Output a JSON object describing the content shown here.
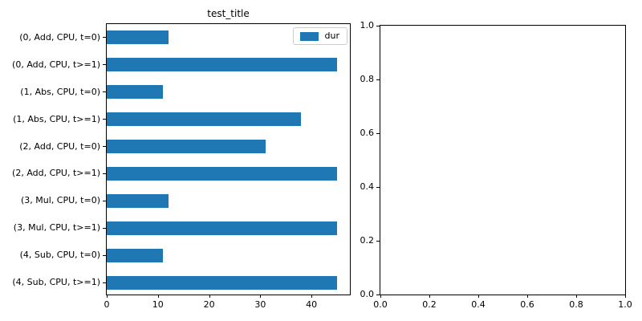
{
  "figure": {
    "background": "#ffffff"
  },
  "chart_data": [
    {
      "type": "bar",
      "orientation": "horizontal",
      "title": "test_title",
      "categories": [
        "(0, Add, CPU, t=0)",
        "(0, Add, CPU, t>=1)",
        "(1, Abs, CPU, t=0)",
        "(1, Abs, CPU, t>=1)",
        "(2, Add, CPU, t=0)",
        "(2, Add, CPU, t>=1)",
        "(3, Mul, CPU, t=0)",
        "(3, Mul, CPU, t>=1)",
        "(4, Sub, CPU, t=0)",
        "(4, Sub, CPU, t>=1)"
      ],
      "series": [
        {
          "name": "dur",
          "values": [
            12,
            45,
            11,
            38,
            31,
            45,
            12,
            45,
            11,
            45
          ]
        }
      ],
      "bar_color": "#1f77b4",
      "xlabel": "",
      "ylabel": "",
      "xlim": [
        0,
        47.5
      ],
      "x_ticks": [
        0,
        10,
        20,
        30,
        40
      ],
      "grid": false,
      "legend": {
        "entries": [
          "dur"
        ],
        "position": "upper-right"
      }
    },
    {
      "type": "empty-axes",
      "title": "",
      "xlim": [
        0,
        1
      ],
      "ylim": [
        0,
        1
      ],
      "x_ticks": [
        "0.0",
        "0.2",
        "0.4",
        "0.6",
        "0.8",
        "1.0"
      ],
      "y_ticks": [
        "0.0",
        "0.2",
        "0.4",
        "0.6",
        "0.8",
        "1.0"
      ],
      "grid": false
    }
  ]
}
